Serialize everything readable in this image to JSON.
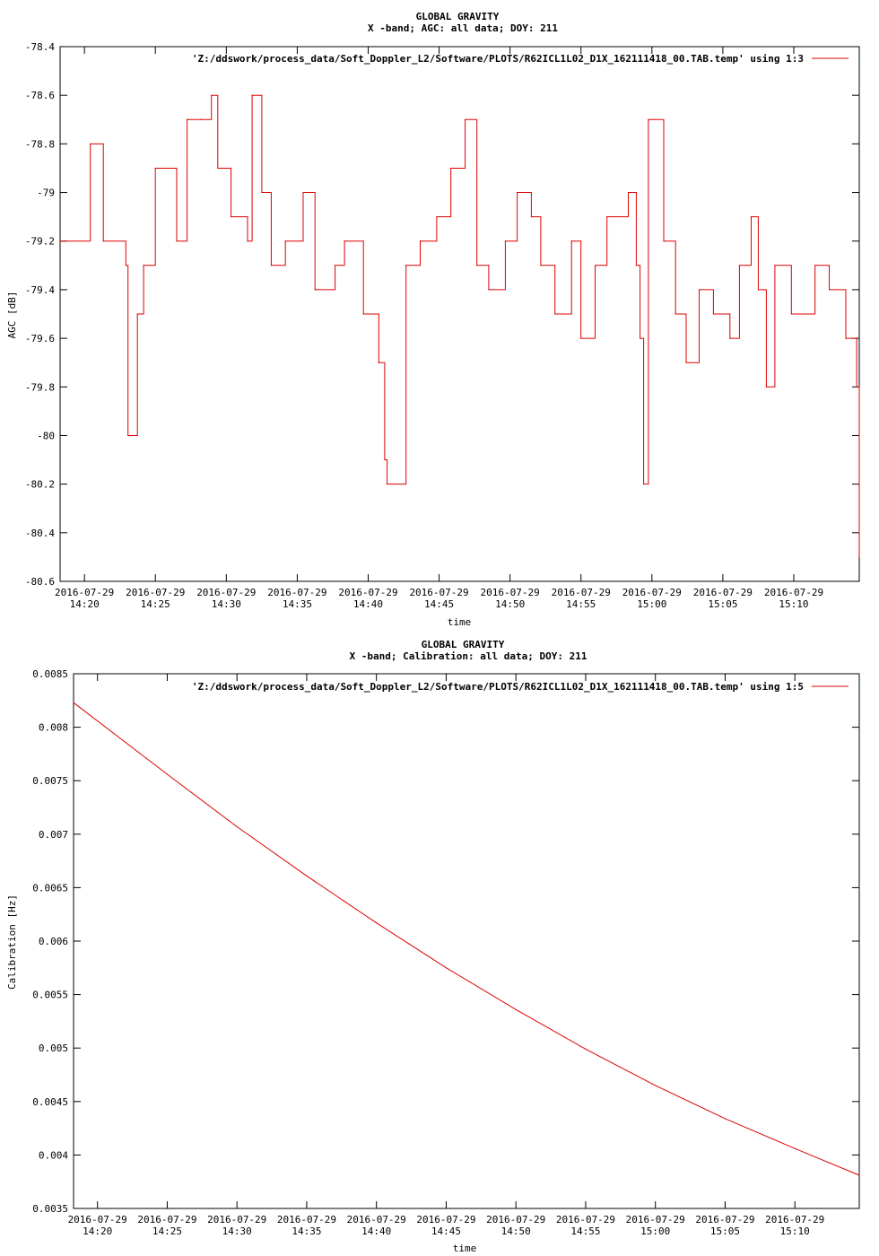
{
  "charts": [
    {
      "title": "GLOBAL GRAVITY",
      "subtitle": "X -band; AGC: all data; DOY: 211",
      "xlabel": "time",
      "ylabel": "AGC [dB]",
      "legend": "'Z:/ddswork/process_data/Soft_Doppler_L2/Software/PLOTS/R62ICL1L02_D1X_162111418_00.TAB.temp' using 1:3"
    },
    {
      "title": "GLOBAL GRAVITY",
      "subtitle": "X -band; Calibration: all data; DOY: 211",
      "xlabel": "time",
      "ylabel": "Calibration [Hz]",
      "legend": "'Z:/ddswork/process_data/Soft_Doppler_L2/Software/PLOTS/R62ICL1L02_D1X_162111418_00.TAB.temp' using 1:5"
    }
  ],
  "chart_data": [
    {
      "type": "line",
      "title": "GLOBAL GRAVITY",
      "subtitle": "X -band; AGC: all data; DOY: 211",
      "xlabel": "time",
      "ylabel": "AGC [dB]",
      "date_label": "2016-07-29",
      "xlim": [
        "14:18:17",
        "15:14:37"
      ],
      "ylim": [
        -80.6,
        -78.4
      ],
      "x_ticks": [
        "14:20",
        "14:25",
        "14:30",
        "14:35",
        "14:40",
        "14:45",
        "14:50",
        "14:55",
        "15:00",
        "15:05",
        "15:10"
      ],
      "y_ticks": [
        "-78.4",
        "-78.6",
        "-78.8",
        "-79",
        "-79.2",
        "-79.4",
        "-79.6",
        "-79.8",
        "-80",
        "-80.2",
        "-80.4",
        "-80.6"
      ],
      "grid": false,
      "legend_position": "top-right",
      "series": [
        {
          "color": "#dd0000",
          "style": "steps",
          "x": [
            "14:18:17",
            "14:20:25",
            "14:21:20",
            "14:22:55",
            "14:23:04",
            "14:23:44",
            "14:24:10",
            "14:25:00",
            "14:26:30",
            "14:27:14",
            "14:28:10",
            "14:28:57",
            "14:29:24",
            "14:30:20",
            "14:31:30",
            "14:31:49",
            "14:32:30",
            "14:33:10",
            "14:34:10",
            "14:35:25",
            "14:36:15",
            "14:37:40",
            "14:38:20",
            "14:39:40",
            "14:40:45",
            "14:41:10",
            "14:41:20",
            "14:42:40",
            "14:43:40",
            "14:44:50",
            "14:45:50",
            "14:46:50",
            "14:47:40",
            "14:48:30",
            "14:49:40",
            "14:50:30",
            "14:51:30",
            "14:52:10",
            "14:53:10",
            "14:54:20",
            "14:55:00",
            "14:56:00",
            "14:56:50",
            "14:58:20",
            "14:58:54",
            "14:59:10",
            "14:59:25",
            "14:59:45",
            "15:00:50",
            "15:01:40",
            "15:02:25",
            "15:03:20",
            "15:04:20",
            "15:05:30",
            "15:06:10",
            "15:07:00",
            "15:07:30",
            "15:08:04",
            "15:08:40",
            "15:09:50",
            "15:11:30",
            "15:12:30",
            "15:13:40",
            "15:14:26",
            "15:14:37"
          ],
          "y": [
            -79.2,
            -78.8,
            -79.2,
            -79.3,
            -80.0,
            -79.5,
            -79.3,
            -78.9,
            -79.2,
            -78.7,
            -78.7,
            -78.6,
            -78.9,
            -79.1,
            -79.2,
            -78.6,
            -79.0,
            -79.3,
            -79.2,
            -79.0,
            -79.4,
            -79.3,
            -79.2,
            -79.5,
            -79.7,
            -80.1,
            -80.2,
            -79.3,
            -79.2,
            -79.1,
            -78.9,
            -78.7,
            -79.3,
            -79.4,
            -79.2,
            -79.0,
            -79.1,
            -79.3,
            -79.5,
            -79.2,
            -79.6,
            -79.3,
            -79.1,
            -79.0,
            -79.3,
            -79.6,
            -80.2,
            -78.7,
            -79.2,
            -79.5,
            -79.7,
            -79.4,
            -79.5,
            -79.6,
            -79.3,
            -79.1,
            -79.4,
            -79.8,
            -79.3,
            -79.5,
            -79.3,
            -79.4,
            -79.6,
            -79.8,
            -80.5
          ]
        }
      ]
    },
    {
      "type": "line",
      "title": "GLOBAL GRAVITY",
      "subtitle": "X -band; Calibration: all data; DOY: 211",
      "xlabel": "time",
      "ylabel": "Calibration [Hz]",
      "date_label": "2016-07-29",
      "xlim": [
        "14:18:17",
        "15:14:37"
      ],
      "ylim": [
        0.0035,
        0.0085
      ],
      "x_ticks": [
        "14:20",
        "14:25",
        "14:30",
        "14:35",
        "14:40",
        "14:45",
        "14:50",
        "14:55",
        "15:00",
        "15:05",
        "15:10"
      ],
      "y_ticks": [
        "0.0085",
        "0.008",
        "0.0075",
        "0.007",
        "0.0065",
        "0.006",
        "0.0055",
        "0.005",
        "0.0045",
        "0.004",
        "0.0035"
      ],
      "grid": false,
      "legend_position": "top-right",
      "series": [
        {
          "color": "#dd0000",
          "style": "line",
          "x": [
            "14:18:17",
            "14:25:00",
            "14:30:00",
            "14:35:00",
            "14:40:00",
            "14:45:00",
            "14:50:00",
            "14:55:00",
            "15:00:00",
            "15:05:00",
            "15:10:00",
            "15:14:37"
          ],
          "y": [
            0.00823,
            0.00756,
            0.00707,
            0.00661,
            0.00617,
            0.00575,
            0.00536,
            0.00499,
            0.00465,
            0.00434,
            0.00406,
            0.00381
          ]
        }
      ]
    }
  ]
}
